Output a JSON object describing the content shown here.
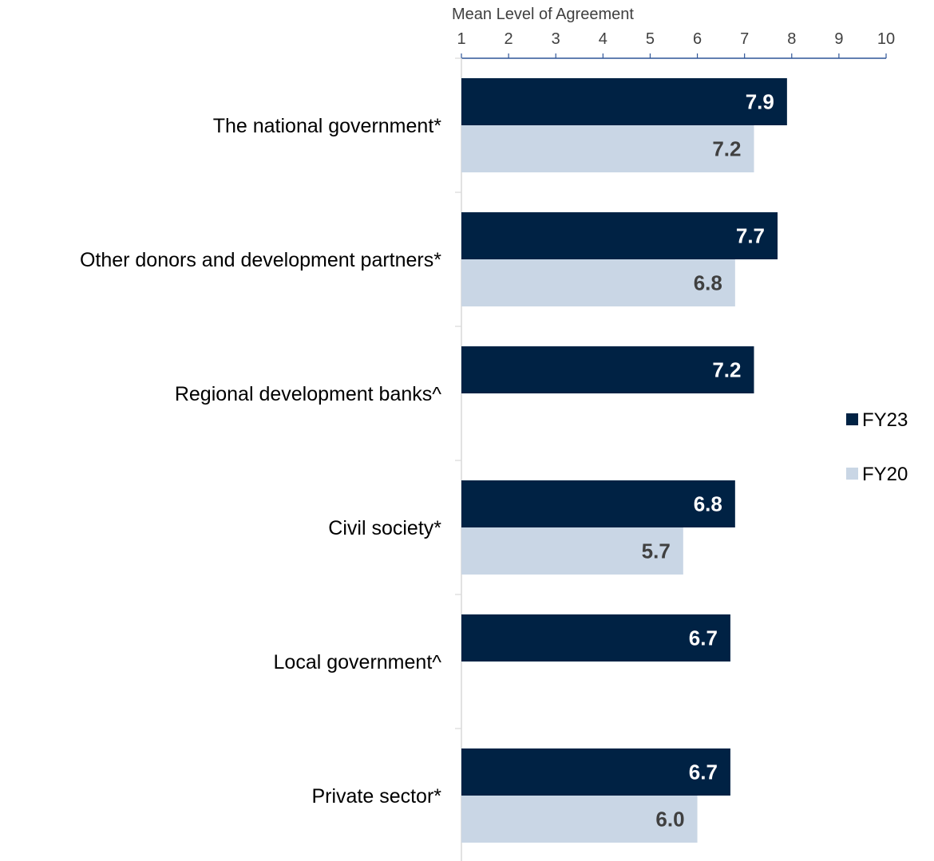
{
  "chart_data": {
    "type": "bar",
    "orientation": "horizontal",
    "xlabel": "Mean Level of Agreement",
    "xlim": [
      1,
      10
    ],
    "ticks": [
      1,
      2,
      3,
      4,
      5,
      6,
      7,
      8,
      9,
      10
    ],
    "categories": [
      "The national government*",
      "Other donors and development partners*",
      "Regional development banks^",
      "Civil society*",
      "Local government^",
      "Private sector*"
    ],
    "series": [
      {
        "name": "FY23",
        "color": "#002244",
        "label_color": "#ffffff",
        "values": [
          7.9,
          7.7,
          7.2,
          6.8,
          6.7,
          6.7
        ],
        "labels": [
          "7.9",
          "7.7",
          "7.2",
          "6.8",
          "6.7",
          "6.7"
        ]
      },
      {
        "name": "FY20",
        "color": "#c9d6e5",
        "label_color": "#404040",
        "values": [
          7.2,
          6.8,
          null,
          5.7,
          null,
          6.0
        ],
        "labels": [
          "7.2",
          "6.8",
          "",
          "5.7",
          "",
          "6.0"
        ]
      }
    ],
    "legend_position": "right",
    "grid": false
  }
}
